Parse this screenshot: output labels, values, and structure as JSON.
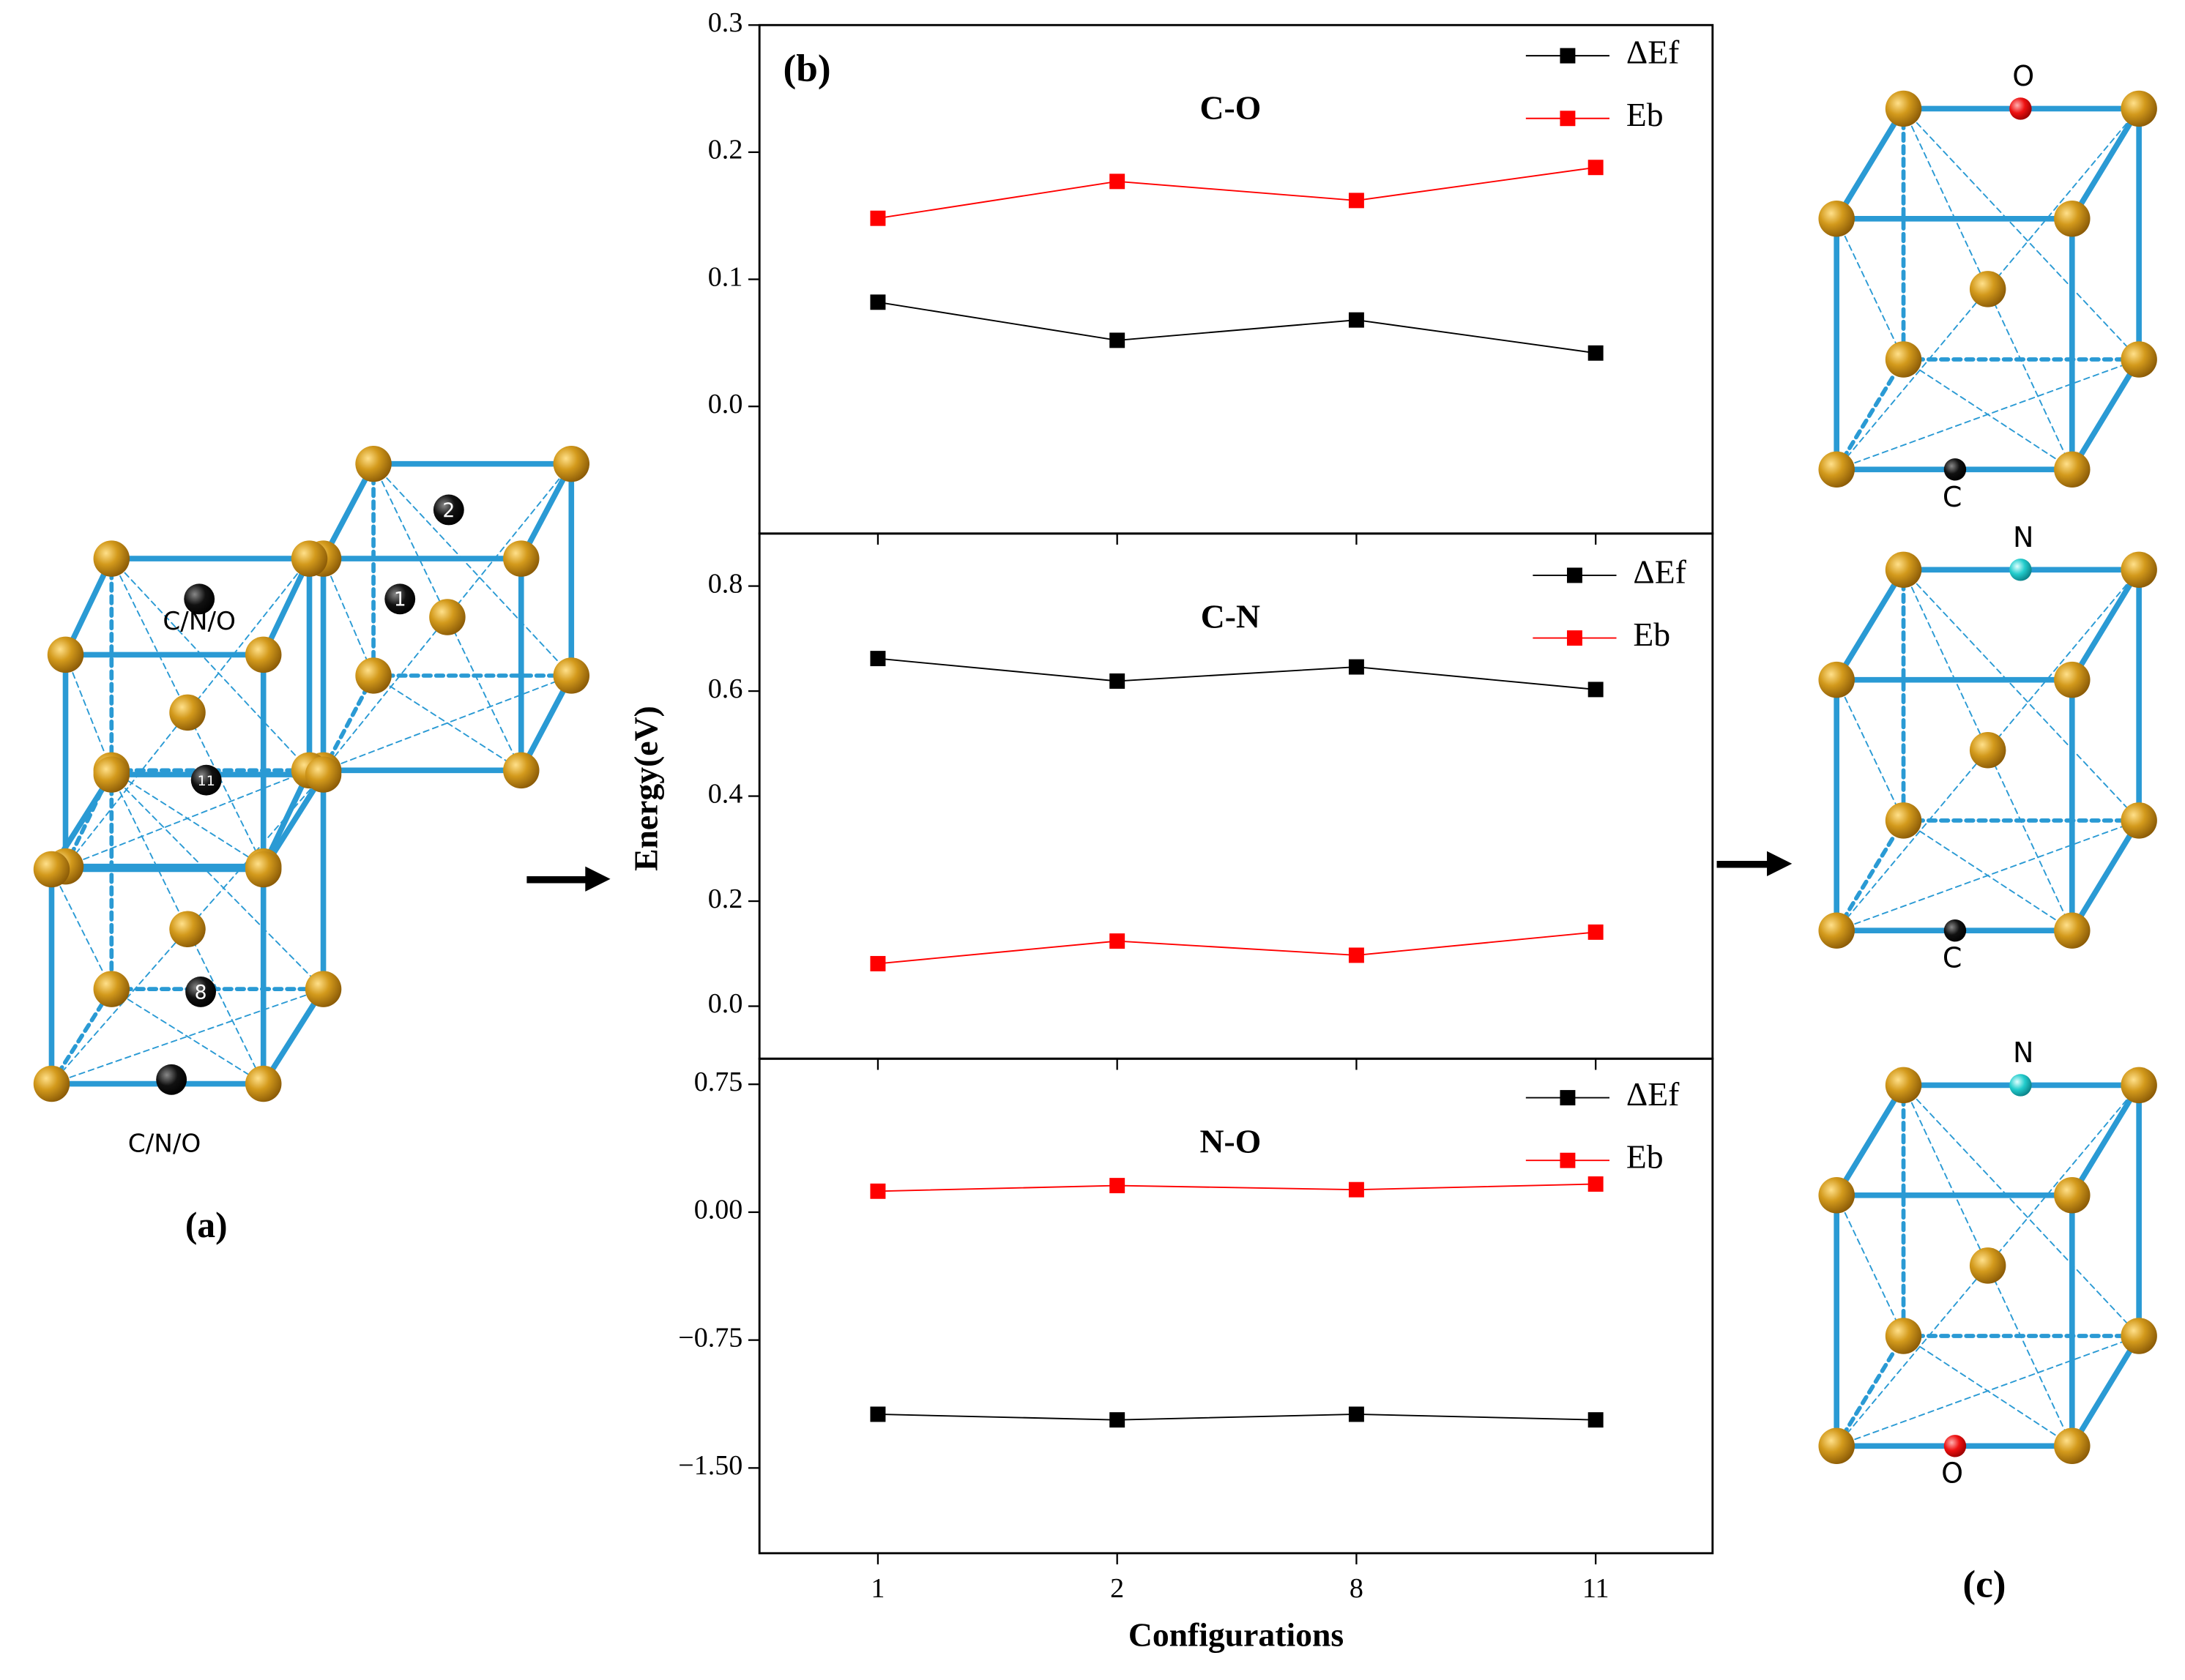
{
  "chart_data": [
    {
      "type": "line",
      "panel_label": "(b)",
      "title": "C-O",
      "ylim": [
        -0.1,
        0.3
      ],
      "yticks": [
        {
          "value": 0,
          "label": "0.0"
        },
        0.1,
        0.2,
        0.3
      ],
      "series": [
        {
          "name": "ΔEf",
          "color": "#000000",
          "values": [
            0.082,
            0.052,
            0.068,
            0.042
          ]
        },
        {
          "name": "Eb",
          "color": "#ff0000",
          "values": [
            0.148,
            0.177,
            0.162,
            0.188
          ]
        }
      ]
    },
    {
      "type": "line",
      "title": "C-N",
      "y_label": "Energy(eV)",
      "ylim": [
        -0.1,
        0.9
      ],
      "yticks": [
        {
          "value": 0,
          "label": "0.0"
        },
        0.2,
        0.4,
        0.6,
        0.8
      ],
      "series": [
        {
          "name": "ΔEf",
          "color": "#000000",
          "values": [
            0.662,
            0.619,
            0.646,
            0.603
          ]
        },
        {
          "name": "Eb",
          "color": "#ff0000",
          "values": [
            0.081,
            0.124,
            0.097,
            0.141
          ]
        }
      ]
    },
    {
      "type": "line",
      "title": "N-O",
      "x_label": "Configurations",
      "categories": [
        "1",
        "2",
        "8",
        "11"
      ],
      "ylim": [
        -2,
        0.9
      ],
      "yticks": [
        {
          "value": -1.5,
          "label": "−1.50"
        },
        {
          "value": -0.75,
          "label": "−0.75"
        },
        {
          "value": 0,
          "label": "0.00"
        },
        0.75
      ],
      "series": [
        {
          "name": "ΔEf",
          "color": "#000000",
          "values": [
            -1.185,
            -1.218,
            -1.185,
            -1.218
          ]
        },
        {
          "name": "Eb",
          "color": "#ff0000",
          "values": [
            0.123,
            0.156,
            0.132,
            0.165
          ]
        }
      ]
    }
  ],
  "figure": {
    "panel_a": {
      "label": "(a)",
      "site_labels": [
        "2",
        "1",
        "11",
        "8"
      ],
      "dopant_labels": [
        "C/N/O",
        "C/N/O"
      ]
    },
    "panel_c": {
      "label": "(c)",
      "cells": [
        {
          "top": "O",
          "bottom": "C"
        },
        {
          "top": "N",
          "bottom": "C"
        },
        {
          "top": "N",
          "bottom": "O"
        }
      ]
    }
  }
}
